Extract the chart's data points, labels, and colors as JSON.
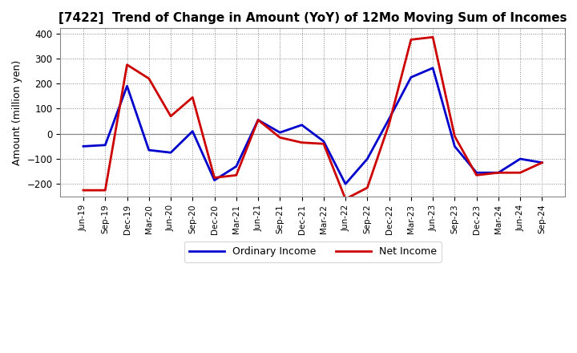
{
  "title": "[7422]  Trend of Change in Amount (YoY) of 12Mo Moving Sum of Incomes",
  "ylabel": "Amount (million yen)",
  "ylim": [
    -250,
    420
  ],
  "yticks": [
    -200,
    -100,
    0,
    100,
    200,
    300,
    400
  ],
  "background_color": "#ffffff",
  "ordinary_income_color": "#0000cc",
  "net_income_color": "#cc0000",
  "line_width": 2.0,
  "labels": [
    "Jun-19",
    "Sep-19",
    "Dec-19",
    "Mar-20",
    "Jun-20",
    "Sep-20",
    "Dec-20",
    "Mar-21",
    "Jun-21",
    "Sep-21",
    "Dec-21",
    "Mar-22",
    "Jun-22",
    "Sep-22",
    "Dec-22",
    "Mar-23",
    "Jun-23",
    "Sep-23",
    "Dec-23",
    "Mar-24",
    "Jun-24",
    "Sep-24"
  ],
  "ordinary_income": [
    -50,
    -45,
    190,
    -65,
    -75,
    10,
    -185,
    -130,
    55,
    5,
    35,
    -30,
    -200,
    -100,
    60,
    225,
    262,
    -50,
    -155,
    -155,
    -100,
    -115
  ],
  "net_income": [
    -225,
    -225,
    275,
    220,
    70,
    145,
    -175,
    -165,
    55,
    -15,
    -35,
    -40,
    -260,
    -215,
    40,
    375,
    385,
    -10,
    -165,
    -155,
    -155,
    -115
  ]
}
